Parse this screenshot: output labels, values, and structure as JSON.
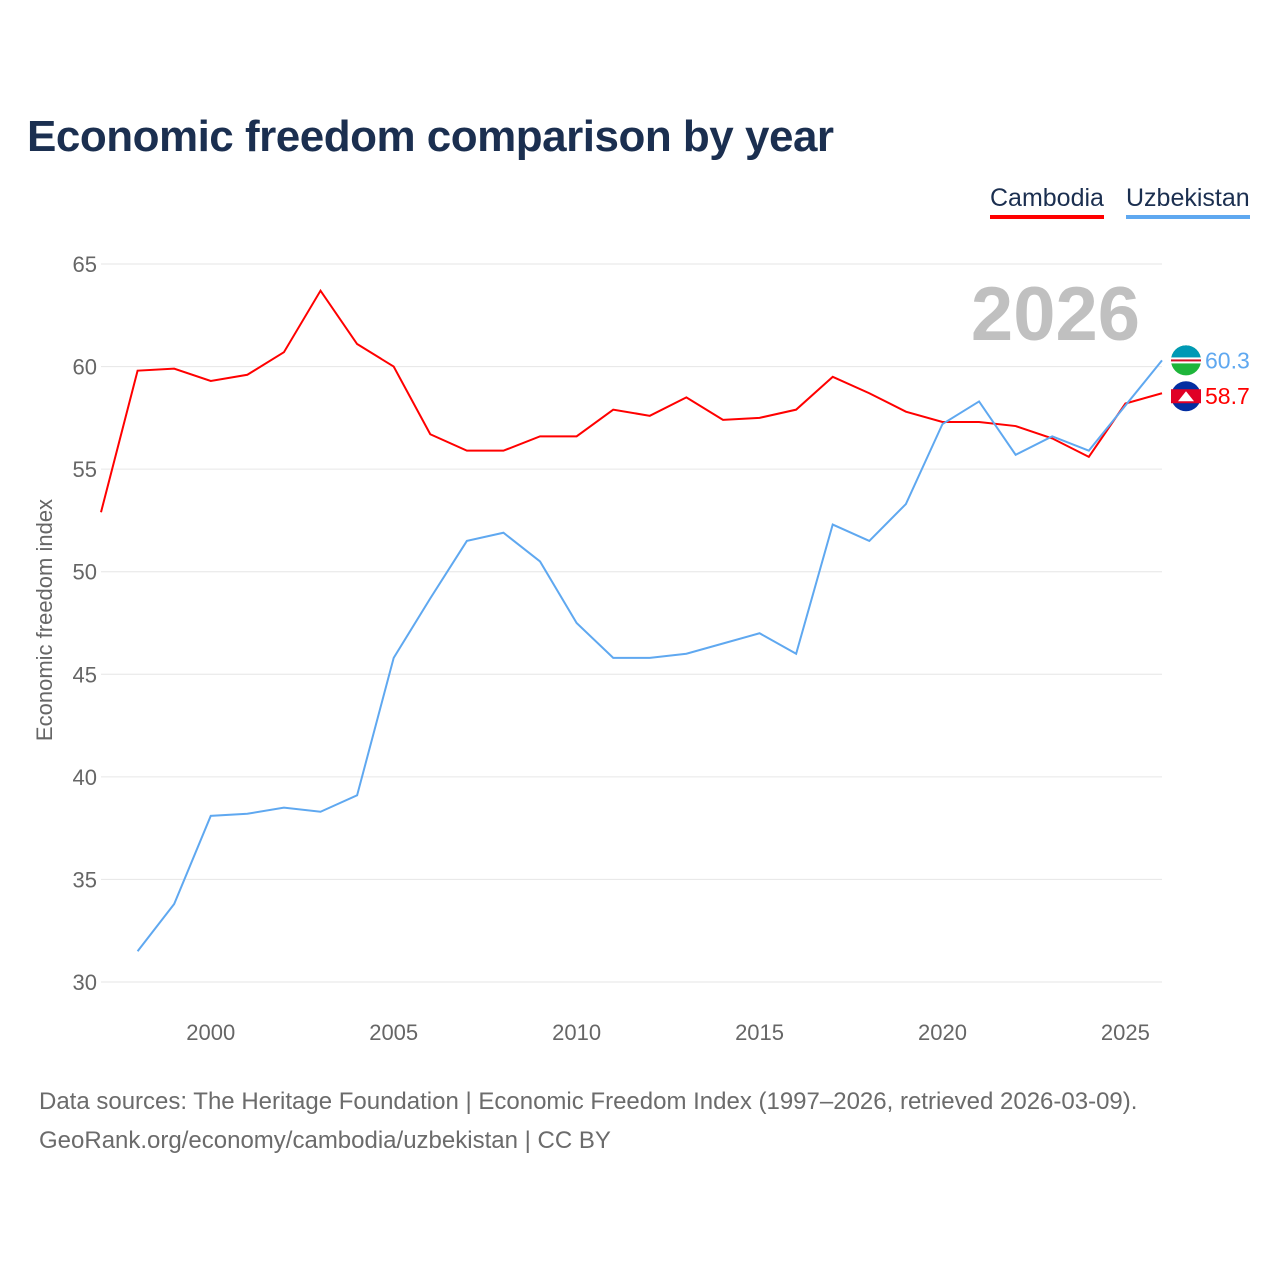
{
  "chart_data": {
    "type": "line",
    "title": "Economic freedom comparison by year",
    "xlabel": "",
    "ylabel": "Economic freedom index",
    "ylim": [
      30,
      65
    ],
    "xlim": [
      1997,
      2026
    ],
    "yticks": [
      30,
      35,
      40,
      45,
      50,
      55,
      60,
      65
    ],
    "xticks": [
      2000,
      2005,
      2010,
      2015,
      2020,
      2025
    ],
    "grid": true,
    "legend_position": "top-right",
    "year_label": "2026",
    "series": [
      {
        "name": "Cambodia",
        "color": "#ff0000",
        "end_label": "58.7",
        "x": [
          1997,
          1998,
          1999,
          2000,
          2001,
          2002,
          2003,
          2004,
          2005,
          2006,
          2007,
          2008,
          2009,
          2010,
          2011,
          2012,
          2013,
          2014,
          2015,
          2016,
          2017,
          2018,
          2019,
          2020,
          2021,
          2022,
          2023,
          2024,
          2025,
          2026
        ],
        "values": [
          52.9,
          59.8,
          59.9,
          59.3,
          59.6,
          60.7,
          63.7,
          61.1,
          60.0,
          56.7,
          55.9,
          55.9,
          56.6,
          56.6,
          57.9,
          57.6,
          58.5,
          57.4,
          57.5,
          57.9,
          59.5,
          58.7,
          57.8,
          57.3,
          57.3,
          57.1,
          56.5,
          55.6,
          58.2,
          58.7
        ]
      },
      {
        "name": "Uzbekistan",
        "color": "#5fa8f0",
        "end_label": "60.3",
        "x": [
          1998,
          1999,
          2000,
          2001,
          2002,
          2003,
          2004,
          2005,
          2006,
          2007,
          2008,
          2009,
          2010,
          2011,
          2012,
          2013,
          2014,
          2015,
          2016,
          2017,
          2018,
          2019,
          2020,
          2021,
          2022,
          2023,
          2024,
          2025,
          2026
        ],
        "values": [
          31.5,
          33.8,
          38.1,
          38.2,
          38.5,
          38.3,
          39.1,
          45.8,
          48.7,
          51.5,
          51.9,
          50.5,
          47.5,
          45.8,
          45.8,
          46.0,
          46.5,
          47.0,
          46.0,
          52.3,
          51.5,
          53.3,
          57.2,
          58.3,
          55.7,
          56.6,
          55.9,
          58.1,
          60.3
        ]
      }
    ]
  },
  "footer": {
    "source_line": "Data sources: The Heritage Foundation | Economic Freedom Index (1997–2026, retrieved 2026-03-09).",
    "url_line": "GeoRank.org/economy/cambodia/uzbekistan | CC BY"
  }
}
